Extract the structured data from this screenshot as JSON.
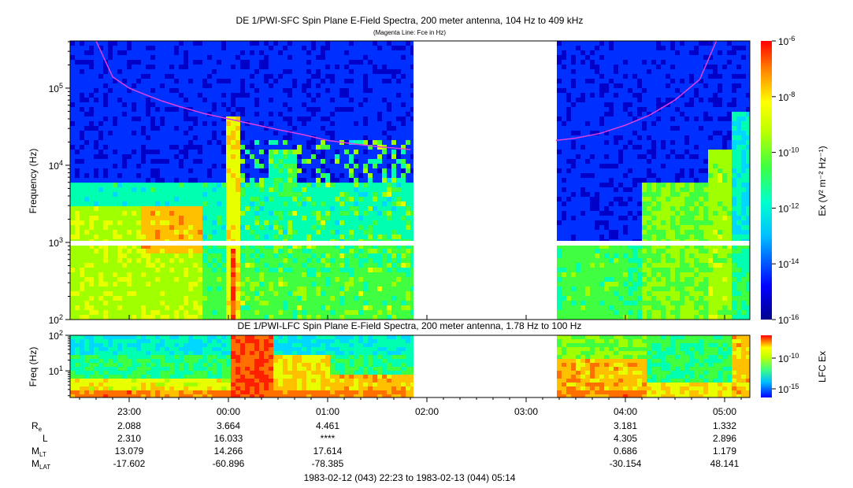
{
  "chart_data": [
    {
      "type": "heatmap",
      "title": "DE 1/PWI-SFC  Spin Plane E-Field Spectra, 200 meter antenna, 104 Hz to 409 kHz",
      "subtitle": "(Magenta Line: Fce in Hz)",
      "ylabel": "Frequency (Hz)",
      "y_scale": "log",
      "ylim": [
        100,
        409000
      ],
      "y_ticks": [
        {
          "value": 100,
          "label_base": "10",
          "label_exp": "2"
        },
        {
          "value": 1000,
          "label_base": "10",
          "label_exp": "3"
        },
        {
          "value": 10000,
          "label_base": "10",
          "label_exp": "4"
        },
        {
          "value": 100000,
          "label_base": "10",
          "label_exp": "5"
        }
      ],
      "colorbar": {
        "label": "Ex (V² m⁻² Hz⁻¹)",
        "scale": "log",
        "range": [
          1e-16,
          1e-06
        ],
        "ticks": [
          {
            "value": 1e-06,
            "label_base": "10",
            "label_exp": "-6"
          },
          {
            "value": 1e-08,
            "label_base": "10",
            "label_exp": "-8"
          },
          {
            "value": 1e-10,
            "label_base": "10",
            "label_exp": "-10"
          },
          {
            "value": 1e-12,
            "label_base": "10",
            "label_exp": "-12"
          },
          {
            "value": 1e-14,
            "label_base": "10",
            "label_exp": "-14"
          },
          {
            "value": 1e-16,
            "label_base": "10",
            "label_exp": "-16"
          }
        ]
      },
      "data_gap": {
        "start": "01:50",
        "end": "03:17"
      },
      "series": [
        {
          "name": "Fce",
          "color": "#e040e0",
          "points": [
            [
              "22:40",
              409000
            ],
            [
              "22:50",
              140000
            ],
            [
              "23:00",
              100000
            ],
            [
              "23:10",
              82000
            ],
            [
              "23:20",
              68000
            ],
            [
              "23:30",
              58000
            ],
            [
              "23:45",
              47000
            ],
            [
              "00:00",
              40000
            ],
            [
              "00:15",
              34000
            ],
            [
              "00:30",
              29000
            ],
            [
              "00:45",
              25000
            ],
            [
              "01:00",
              21000
            ],
            [
              "01:15",
              19000
            ],
            [
              "01:30",
              17500
            ],
            [
              "01:50",
              16000
            ],
            [
              "03:18",
              21000
            ],
            [
              "03:30",
              22500
            ],
            [
              "03:45",
              26000
            ],
            [
              "04:00",
              33000
            ],
            [
              "04:15",
              45000
            ],
            [
              "04:30",
              70000
            ],
            [
              "04:45",
              130000
            ],
            [
              "04:55",
              409000
            ]
          ]
        }
      ]
    },
    {
      "type": "heatmap",
      "title": "DE 1/PWI-LFC  Spin Plane E-Field Spectra, 200 meter antenna, 1.78 Hz to 100 Hz",
      "ylabel": "Freq (Hz)",
      "y_scale": "log",
      "ylim": [
        1.78,
        100
      ],
      "y_ticks": [
        {
          "value": 10,
          "label_base": "10",
          "label_exp": "1"
        },
        {
          "value": 100,
          "label_base": "10",
          "label_exp": "2"
        }
      ],
      "colorbar": {
        "label": "LFC Ex",
        "scale": "log",
        "ticks": [
          {
            "value": 1e-10,
            "label_base": "10",
            "label_exp": "-10"
          },
          {
            "value": 1e-15,
            "label_base": "10",
            "label_exp": "-15"
          }
        ]
      },
      "data_gap": {
        "start": "01:50",
        "end": "03:17"
      }
    }
  ],
  "x_axis": {
    "range": [
      "22:23",
      "05:14"
    ],
    "ticks": [
      "23:00",
      "00:00",
      "01:00",
      "02:00",
      "03:00",
      "04:00",
      "05:00"
    ]
  },
  "ephemeris": {
    "rows": [
      {
        "label": "R",
        "sub": "e",
        "values": [
          "2.088",
          "3.664",
          "4.461",
          "",
          "",
          "3.181",
          "1.332"
        ]
      },
      {
        "label": "L",
        "sub": "",
        "values": [
          "2.310",
          "16.033",
          "****",
          "",
          "",
          "4.305",
          "2.896"
        ]
      },
      {
        "label": "M",
        "sub": "LT",
        "values": [
          "13.079",
          "14.266",
          "17.614",
          "",
          "",
          "0.686",
          "1.179"
        ]
      },
      {
        "label": "M",
        "sub": "LAT",
        "values": [
          "-17.602",
          "-60.896",
          "-78.385",
          "",
          "",
          "-30.154",
          "48.141"
        ]
      }
    ]
  },
  "footer": "1983-02-12 (043) 22:23 to 1983-02-13 (044) 05:14",
  "colors": {
    "colormap": [
      "#00008b",
      "#0000ff",
      "#00bfff",
      "#00ffa0",
      "#a0ff00",
      "#ffff00",
      "#ff8000",
      "#ff0000"
    ]
  }
}
